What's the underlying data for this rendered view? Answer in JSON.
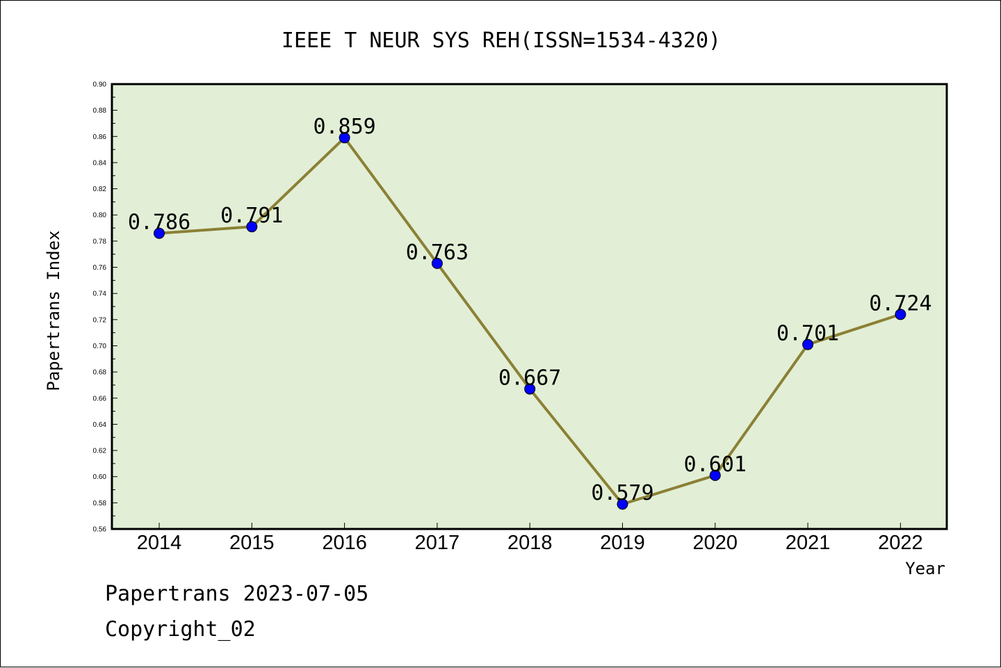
{
  "chart_data": {
    "type": "line",
    "title": "IEEE T NEUR SYS REH(ISSN=1534-4320)",
    "xlabel": "Year",
    "ylabel": "Papertrans Index",
    "categories": [
      "2014",
      "2015",
      "2016",
      "2017",
      "2018",
      "2019",
      "2020",
      "2021",
      "2022"
    ],
    "series": [
      {
        "values": [
          0.786,
          0.791,
          0.859,
          0.763,
          0.667,
          0.579,
          0.601,
          0.701,
          0.724
        ],
        "data_labels": [
          "0.786",
          "0.791",
          "0.859",
          "0.763",
          "0.667",
          "0.579",
          "0.601",
          "0.701",
          "0.724"
        ],
        "line_color": "#8b8035",
        "marker_color": "#0000ff"
      }
    ],
    "ylim": [
      0.56,
      0.9
    ],
    "y_ticks": [
      "0.56",
      "0.58",
      "0.60",
      "0.62",
      "0.64",
      "0.66",
      "0.68",
      "0.70",
      "0.72",
      "0.74",
      "0.76",
      "0.78",
      "0.80",
      "0.82",
      "0.84",
      "0.86",
      "0.88",
      "0.90"
    ],
    "plot_background": "#e2efd6",
    "grid": false,
    "legend": "none"
  },
  "footer": {
    "date_line": "Papertrans 2023-07-05",
    "copyright_line": "Copyright_02"
  }
}
